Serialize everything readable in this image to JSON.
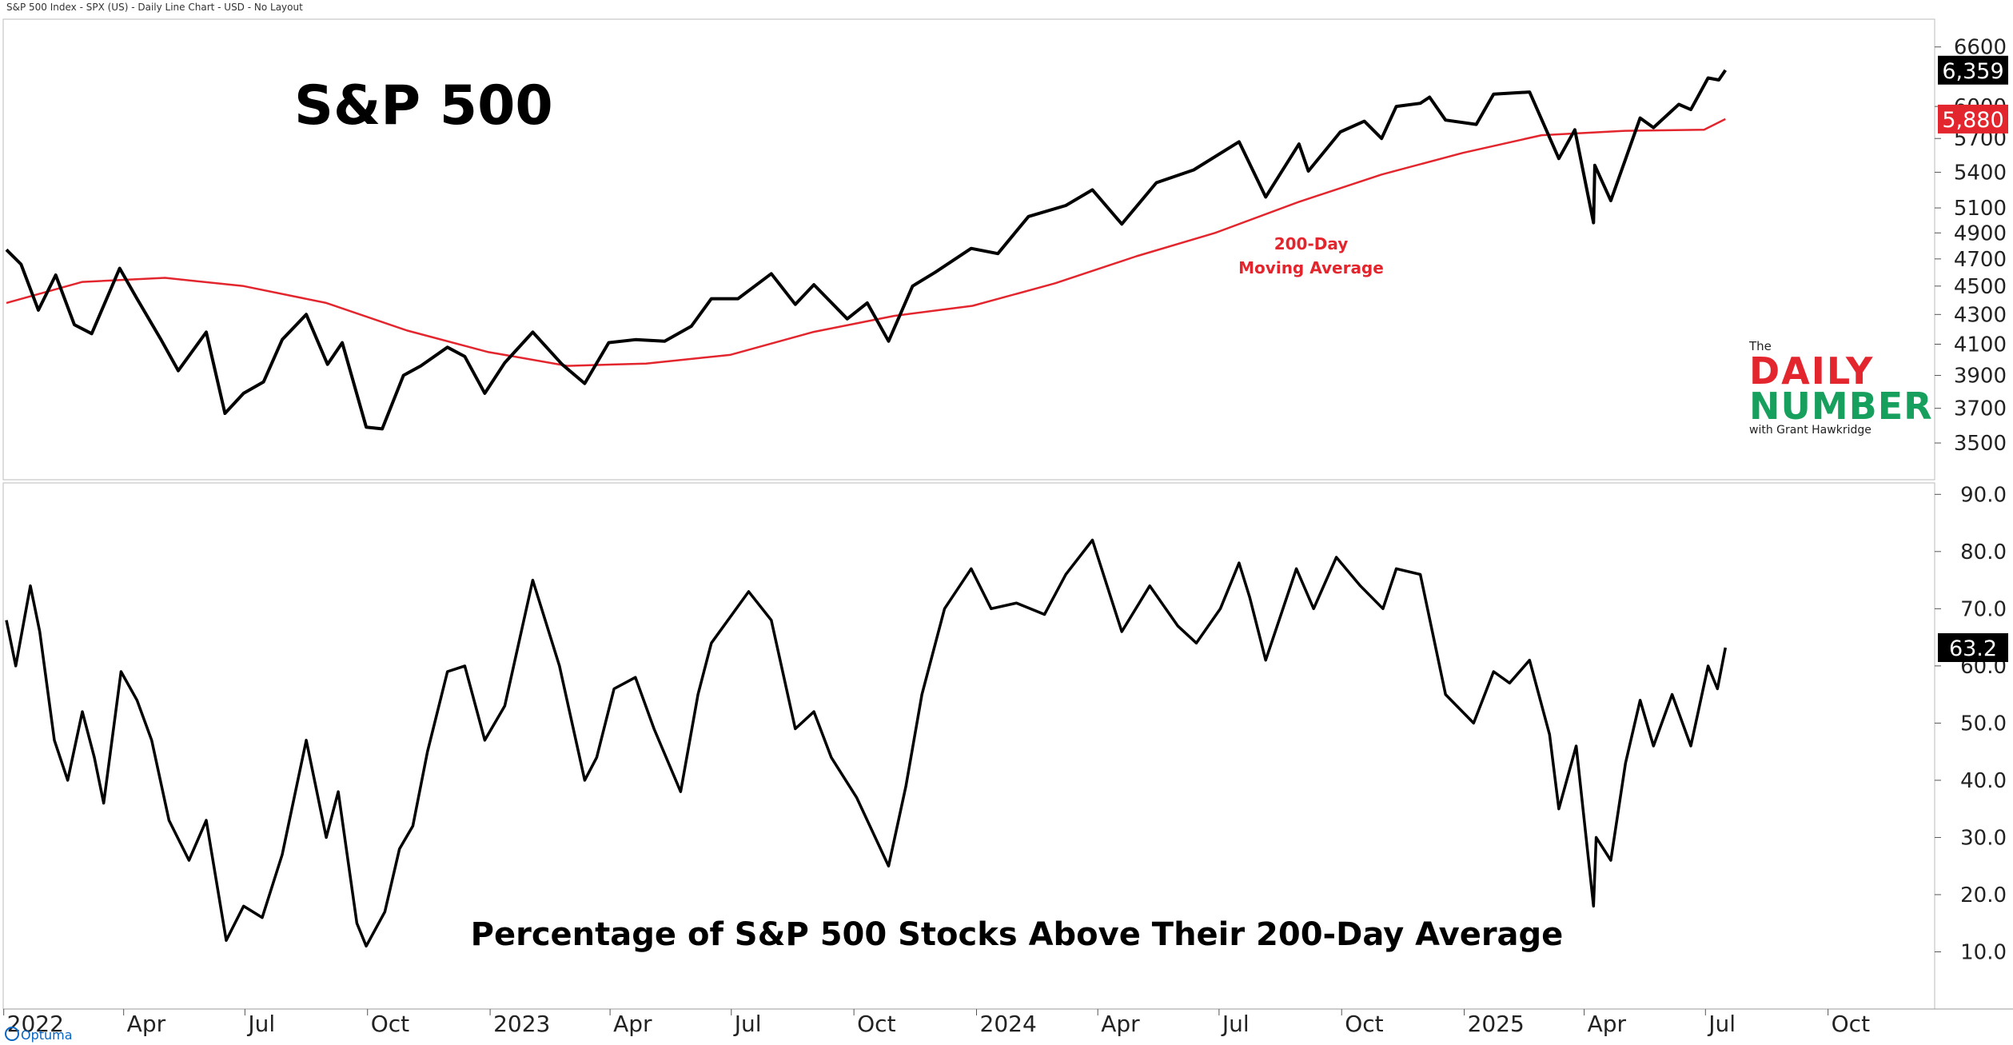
{
  "header": {
    "caption": "S&P 500 Index - SPX (US) - Daily Line Chart - USD - No Layout"
  },
  "branding": {
    "optuma": "Optuma",
    "logo_the": "The",
    "logo_daily": "DAILY",
    "logo_number": "NUMBER",
    "logo_with": "with Grant Hawkridge"
  },
  "chart_data": [
    {
      "type": "line",
      "title": "S&P 500",
      "annotation": "200-Day\nMoving Average",
      "xlabel": "",
      "ylabel": "",
      "x_tick_labels": [
        "2022",
        "Apr",
        "Jul",
        "Oct",
        "2023",
        "Apr",
        "Jul",
        "Oct",
        "2024",
        "Apr",
        "Jul",
        "Oct",
        "2025",
        "Apr",
        "Jul",
        "Oct"
      ],
      "x_tick_dates": [
        "2022-01-01",
        "2022-04-01",
        "2022-07-01",
        "2022-10-01",
        "2023-01-01",
        "2023-04-01",
        "2023-07-01",
        "2023-10-01",
        "2024-01-01",
        "2024-04-01",
        "2024-07-01",
        "2024-10-01",
        "2025-01-01",
        "2025-04-01",
        "2025-07-01",
        "2025-10-01"
      ],
      "y_ticks": [
        3500,
        3700,
        3900,
        4100,
        4300,
        4500,
        4700,
        4900,
        5100,
        5400,
        5700,
        6000,
        6600
      ],
      "y_scale": "log",
      "ylim": [
        3300,
        6900
      ],
      "grid": false,
      "last_value_labels": [
        "6,359",
        "5,880"
      ],
      "series": [
        {
          "name": "",
          "color": "#000000",
          "points": [
            [
              "2022-01-03",
              4770
            ],
            [
              "2022-01-14",
              4660
            ],
            [
              "2022-01-27",
              4330
            ],
            [
              "2022-02-09",
              4580
            ],
            [
              "2022-02-23",
              4230
            ],
            [
              "2022-03-08",
              4170
            ],
            [
              "2022-03-29",
              4630
            ],
            [
              "2022-04-11",
              4410
            ],
            [
              "2022-04-29",
              4130
            ],
            [
              "2022-05-12",
              3930
            ],
            [
              "2022-06-02",
              4180
            ],
            [
              "2022-06-16",
              3670
            ],
            [
              "2022-06-30",
              3790
            ],
            [
              "2022-07-15",
              3860
            ],
            [
              "2022-07-29",
              4130
            ],
            [
              "2022-08-16",
              4300
            ],
            [
              "2022-09-01",
              3970
            ],
            [
              "2022-09-12",
              4110
            ],
            [
              "2022-09-30",
              3590
            ],
            [
              "2022-10-12",
              3580
            ],
            [
              "2022-10-28",
              3900
            ],
            [
              "2022-11-10",
              3960
            ],
            [
              "2022-11-30",
              4080
            ],
            [
              "2022-12-13",
              4020
            ],
            [
              "2022-12-28",
              3790
            ],
            [
              "2023-01-12",
              3980
            ],
            [
              "2023-02-02",
              4180
            ],
            [
              "2023-02-24",
              3970
            ],
            [
              "2023-03-13",
              3850
            ],
            [
              "2023-03-31",
              4110
            ],
            [
              "2023-04-20",
              4130
            ],
            [
              "2023-05-12",
              4120
            ],
            [
              "2023-06-01",
              4220
            ],
            [
              "2023-06-16",
              4410
            ],
            [
              "2023-07-06",
              4410
            ],
            [
              "2023-07-31",
              4590
            ],
            [
              "2023-08-18",
              4370
            ],
            [
              "2023-09-01",
              4510
            ],
            [
              "2023-09-26",
              4270
            ],
            [
              "2023-10-11",
              4380
            ],
            [
              "2023-10-27",
              4120
            ],
            [
              "2023-11-14",
              4500
            ],
            [
              "2023-12-01",
              4600
            ],
            [
              "2023-12-28",
              4780
            ],
            [
              "2024-01-17",
              4740
            ],
            [
              "2024-02-09",
              5030
            ],
            [
              "2024-03-08",
              5120
            ],
            [
              "2024-03-28",
              5250
            ],
            [
              "2024-04-19",
              4970
            ],
            [
              "2024-05-15",
              5310
            ],
            [
              "2024-06-12",
              5420
            ],
            [
              "2024-07-16",
              5670
            ],
            [
              "2024-08-05",
              5190
            ],
            [
              "2024-08-30",
              5650
            ],
            [
              "2024-09-06",
              5410
            ],
            [
              "2024-09-30",
              5760
            ],
            [
              "2024-10-18",
              5860
            ],
            [
              "2024-10-31",
              5700
            ],
            [
              "2024-11-11",
              6000
            ],
            [
              "2024-11-29",
              6030
            ],
            [
              "2024-12-06",
              6090
            ],
            [
              "2024-12-18",
              5870
            ],
            [
              "2025-01-10",
              5830
            ],
            [
              "2025-01-23",
              6120
            ],
            [
              "2025-02-19",
              6140
            ],
            [
              "2025-03-13",
              5520
            ],
            [
              "2025-03-25",
              5780
            ],
            [
              "2025-04-08",
              4980
            ],
            [
              "2025-04-09",
              5460
            ],
            [
              "2025-04-21",
              5160
            ],
            [
              "2025-05-13",
              5890
            ],
            [
              "2025-05-23",
              5800
            ],
            [
              "2025-06-11",
              6020
            ],
            [
              "2025-06-20",
              5970
            ],
            [
              "2025-07-03",
              6280
            ],
            [
              "2025-07-11",
              6260
            ],
            [
              "2025-07-16",
              6359
            ]
          ]
        },
        {
          "name": "200-Day Moving Average",
          "color": "#e3262e",
          "points": [
            [
              "2022-01-03",
              4380
            ],
            [
              "2022-03-01",
              4530
            ],
            [
              "2022-05-02",
              4560
            ],
            [
              "2022-06-30",
              4500
            ],
            [
              "2022-08-31",
              4380
            ],
            [
              "2022-10-31",
              4190
            ],
            [
              "2022-12-30",
              4050
            ],
            [
              "2023-02-28",
              3960
            ],
            [
              "2023-04-28",
              3975
            ],
            [
              "2023-06-30",
              4030
            ],
            [
              "2023-08-31",
              4180
            ],
            [
              "2023-10-31",
              4290
            ],
            [
              "2023-12-29",
              4360
            ],
            [
              "2024-02-29",
              4520
            ],
            [
              "2024-04-30",
              4720
            ],
            [
              "2024-06-28",
              4900
            ],
            [
              "2024-08-30",
              5150
            ],
            [
              "2024-10-31",
              5380
            ],
            [
              "2024-12-31",
              5570
            ],
            [
              "2025-02-28",
              5730
            ],
            [
              "2025-04-30",
              5770
            ],
            [
              "2025-06-30",
              5780
            ],
            [
              "2025-07-16",
              5880
            ]
          ]
        }
      ]
    },
    {
      "type": "line",
      "title": "Percentage of S&P 500 Stocks Above Their 200-Day Average",
      "xlabel": "",
      "ylabel": "",
      "y_ticks": [
        10.0,
        20.0,
        30.0,
        40.0,
        50.0,
        60.0,
        70.0,
        80.0,
        90.0
      ],
      "y_tick_labels": [
        "10.0",
        "20.0",
        "30.0",
        "40.0",
        "50.0",
        "60.0",
        "70.0",
        "80.0",
        "90.0"
      ],
      "ylim": [
        0,
        92
      ],
      "grid": false,
      "last_value_labels": [
        "63.2"
      ],
      "series": [
        {
          "name": "",
          "color": "#000000",
          "points": [
            [
              "2022-01-03",
              68
            ],
            [
              "2022-01-10",
              60
            ],
            [
              "2022-01-21",
              74
            ],
            [
              "2022-01-28",
              66
            ],
            [
              "2022-02-08",
              47
            ],
            [
              "2022-02-18",
              40
            ],
            [
              "2022-03-01",
              52
            ],
            [
              "2022-03-10",
              44
            ],
            [
              "2022-03-17",
              36
            ],
            [
              "2022-03-30",
              59
            ],
            [
              "2022-04-11",
              54
            ],
            [
              "2022-04-22",
              47
            ],
            [
              "2022-05-05",
              33
            ],
            [
              "2022-05-20",
              26
            ],
            [
              "2022-06-02",
              33
            ],
            [
              "2022-06-17",
              12
            ],
            [
              "2022-06-30",
              18
            ],
            [
              "2022-07-14",
              16
            ],
            [
              "2022-07-29",
              27
            ],
            [
              "2022-08-16",
              47
            ],
            [
              "2022-08-31",
              30
            ],
            [
              "2022-09-09",
              38
            ],
            [
              "2022-09-23",
              15
            ],
            [
              "2022-09-30",
              11
            ],
            [
              "2022-10-14",
              17
            ],
            [
              "2022-10-25",
              28
            ],
            [
              "2022-11-04",
              32
            ],
            [
              "2022-11-15",
              45
            ],
            [
              "2022-11-30",
              59
            ],
            [
              "2022-12-13",
              60
            ],
            [
              "2022-12-28",
              47
            ],
            [
              "2023-01-12",
              53
            ],
            [
              "2023-02-02",
              75
            ],
            [
              "2023-02-22",
              60
            ],
            [
              "2023-03-13",
              40
            ],
            [
              "2023-03-22",
              44
            ],
            [
              "2023-04-04",
              56
            ],
            [
              "2023-04-20",
              58
            ],
            [
              "2023-05-04",
              49
            ],
            [
              "2023-05-24",
              38
            ],
            [
              "2023-06-06",
              55
            ],
            [
              "2023-06-16",
              64
            ],
            [
              "2023-07-14",
              73
            ],
            [
              "2023-07-31",
              68
            ],
            [
              "2023-08-18",
              49
            ],
            [
              "2023-09-01",
              52
            ],
            [
              "2023-09-14",
              44
            ],
            [
              "2023-10-03",
              37
            ],
            [
              "2023-10-27",
              25
            ],
            [
              "2023-11-09",
              39
            ],
            [
              "2023-11-21",
              55
            ],
            [
              "2023-12-08",
              70
            ],
            [
              "2023-12-28",
              77
            ],
            [
              "2024-01-12",
              70
            ],
            [
              "2024-01-31",
              71
            ],
            [
              "2024-02-21",
              69
            ],
            [
              "2024-03-08",
              76
            ],
            [
              "2024-03-28",
              82
            ],
            [
              "2024-04-19",
              66
            ],
            [
              "2024-05-10",
              74
            ],
            [
              "2024-05-31",
              67
            ],
            [
              "2024-06-14",
              64
            ],
            [
              "2024-07-02",
              70
            ],
            [
              "2024-07-16",
              78
            ],
            [
              "2024-07-24",
              72
            ],
            [
              "2024-08-05",
              61
            ],
            [
              "2024-08-28",
              77
            ],
            [
              "2024-09-10",
              70
            ],
            [
              "2024-09-27",
              79
            ],
            [
              "2024-10-15",
              74
            ],
            [
              "2024-11-01",
              70
            ],
            [
              "2024-11-11",
              77
            ],
            [
              "2024-11-29",
              76
            ],
            [
              "2024-12-18",
              55
            ],
            [
              "2025-01-08",
              50
            ],
            [
              "2025-01-23",
              59
            ],
            [
              "2025-02-04",
              57
            ],
            [
              "2025-02-19",
              61
            ],
            [
              "2025-03-06",
              48
            ],
            [
              "2025-03-13",
              35
            ],
            [
              "2025-03-26",
              46
            ],
            [
              "2025-04-08",
              18
            ],
            [
              "2025-04-10",
              30
            ],
            [
              "2025-04-21",
              26
            ],
            [
              "2025-05-02",
              43
            ],
            [
              "2025-05-13",
              54
            ],
            [
              "2025-05-23",
              46
            ],
            [
              "2025-06-06",
              55
            ],
            [
              "2025-06-20",
              46
            ],
            [
              "2025-07-03",
              60
            ],
            [
              "2025-07-10",
              56
            ],
            [
              "2025-07-16",
              63.2
            ]
          ]
        }
      ]
    }
  ]
}
